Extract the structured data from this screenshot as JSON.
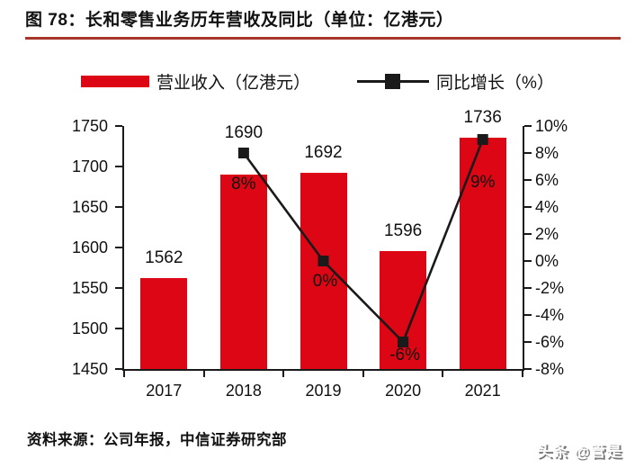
{
  "title": "图 78：长和零售业务历年营收及同比（单位：亿港元）",
  "source": "资料来源：公司年报，中信证券研究部",
  "watermark": "头条 @管是",
  "colors": {
    "bar": "#DC0614",
    "line": "#1A1A1A",
    "axis": "#1A1A1A",
    "title_underline": "#A8352C",
    "text": "#111111"
  },
  "legend": {
    "revenue": "营业收入（亿港元）",
    "growth": "同比增长（%）"
  },
  "chart_data": {
    "type": "bar+line",
    "title": "长和零售业务历年营收及同比（单位：亿港元）",
    "categories": [
      "2017",
      "2018",
      "2019",
      "2020",
      "2021"
    ],
    "series": [
      {
        "name": "营业收入（亿港元）",
        "type": "bar",
        "axis": "left",
        "color": "#DC0614",
        "values": [
          1562,
          1690,
          1692,
          1596,
          1736
        ],
        "value_labels": [
          "1562",
          "1690",
          "1692",
          "1596",
          "1736"
        ]
      },
      {
        "name": "同比增长（%）",
        "type": "line",
        "axis": "right",
        "color": "#1A1A1A",
        "marker": "square",
        "values": [
          null,
          8,
          0,
          -6,
          9
        ],
        "value_labels": [
          "",
          "8%",
          "0%",
          "-6%",
          "9%"
        ]
      }
    ],
    "left_axis": {
      "min": 1450,
      "max": 1750,
      "step": 50,
      "ticks": [
        "1750",
        "1700",
        "1650",
        "1600",
        "1550",
        "1500",
        "1450"
      ]
    },
    "right_axis": {
      "min": -8,
      "max": 10,
      "step": 2,
      "ticks": [
        "10%",
        "8%",
        "6%",
        "4%",
        "2%",
        "0%",
        "-2%",
        "-4%",
        "-6%",
        "-8%"
      ]
    },
    "grid": false,
    "legend_position": "top"
  }
}
